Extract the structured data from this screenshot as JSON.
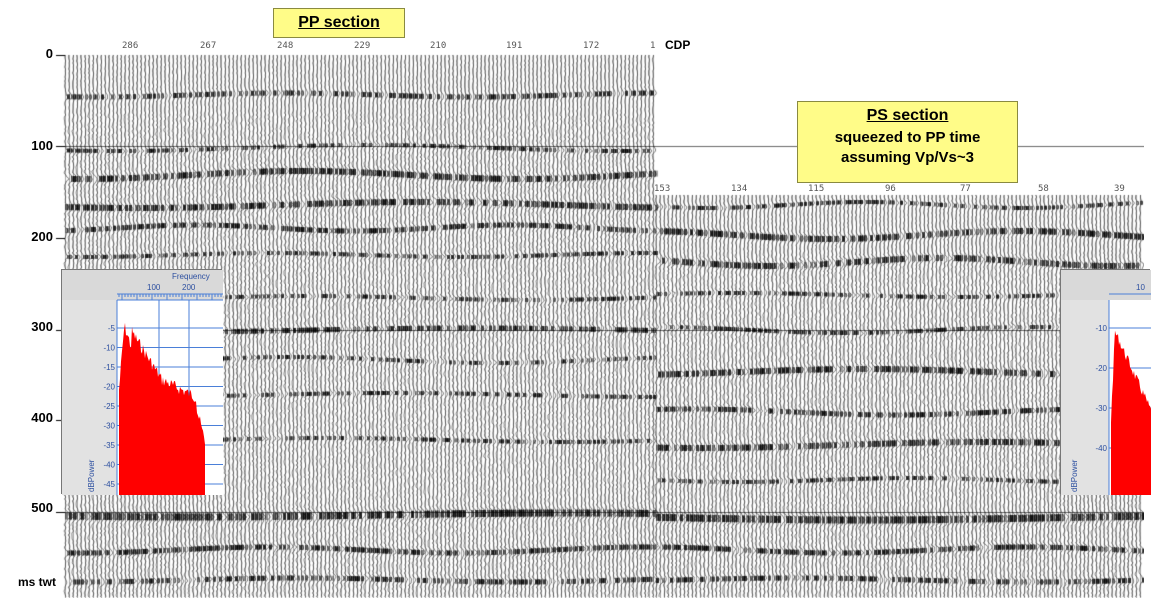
{
  "pp_section": {
    "title": "PP section"
  },
  "ps_section": {
    "title_lines": [
      "PS section",
      "squeezed to PP time",
      "assuming Vp/Vs~3"
    ]
  },
  "axis": {
    "y_ticks": [
      "0",
      "100",
      "200",
      "300",
      "400",
      "500"
    ],
    "y_unit": "ms twt",
    "x_label": "CDP",
    "pp_cdp_ticks": [
      "286",
      "267",
      "248",
      "229",
      "210",
      "191",
      "172",
      "1"
    ],
    "ps_cdp_ticks": [
      "153",
      "134",
      "115",
      "96",
      "77",
      "58",
      "39"
    ]
  },
  "spectrum_left": {
    "x_label": "Frequency",
    "x_ticks": [
      "100",
      "200"
    ],
    "y_label": "dBPower",
    "y_ticks": [
      "-5",
      "-10",
      "-15",
      "-20",
      "-25",
      "-30",
      "-35",
      "-40",
      "-45"
    ]
  },
  "spectrum_right": {
    "x_ticks": [
      "10"
    ],
    "y_label": "dBPower",
    "y_ticks": [
      "-10",
      "-20",
      "-30",
      "-40"
    ]
  },
  "colors": {
    "label_box": "#fffc88",
    "spectrum_fill": "#ff0000",
    "grid": "#4a7fd8"
  }
}
